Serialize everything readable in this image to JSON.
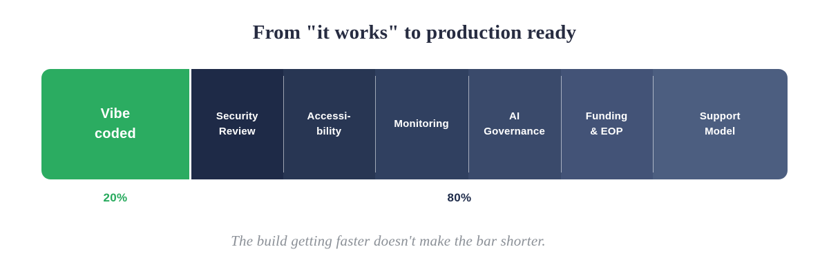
{
  "header": {
    "title": "From \"it works\" to production ready",
    "title_color": "#272c41"
  },
  "chart_data": {
    "type": "bar",
    "subtype": "horizontal-stacked-100pct",
    "title": "From \"it works\" to production ready",
    "orientation": "horizontal",
    "grid": false,
    "legend": false,
    "segments": [
      {
        "label": "Vibe coded",
        "lines": [
          "Vibe",
          "coded"
        ],
        "width_pct": 19.8,
        "color": "#2bac61",
        "emphasis": true
      },
      {
        "label": "Security Review",
        "lines": [
          "Security",
          "Review"
        ],
        "width_pct": 12.3,
        "color": "#1e2a47",
        "emphasis": false
      },
      {
        "label": "Accessibility",
        "lines": [
          "Accessi-",
          "bility"
        ],
        "width_pct": 12.3,
        "color": "#283653",
        "emphasis": false
      },
      {
        "label": "Monitoring",
        "lines": [
          "Monitoring"
        ],
        "width_pct": 12.5,
        "color": "#304060",
        "emphasis": false
      },
      {
        "label": "AI Governance",
        "lines": [
          "AI",
          "Governance"
        ],
        "width_pct": 12.4,
        "color": "#3a4a6b",
        "emphasis": false
      },
      {
        "label": "Funding & EOP",
        "lines": [
          "Funding",
          "& EOP"
        ],
        "width_pct": 12.3,
        "color": "#435377",
        "emphasis": false
      },
      {
        "label": "Support Model",
        "lines": [
          "Support",
          "Model"
        ],
        "width_pct": 18.1,
        "color": "#4c5e80",
        "emphasis": false
      }
    ],
    "value_labels": {
      "left": {
        "text": "20%",
        "value_pct": 20,
        "color": "#27aa5d",
        "applies_to": "Vibe coded"
      },
      "right": {
        "text": "80%",
        "value_pct": 80,
        "color": "#1e2b4a",
        "applies_to": "Security Review through Support Model"
      }
    },
    "divider_color": "rgba(255,255,255,0.55)"
  },
  "footer": {
    "caption": "The build getting faster doesn't make the bar shorter.",
    "caption_color": "#8b9097"
  }
}
